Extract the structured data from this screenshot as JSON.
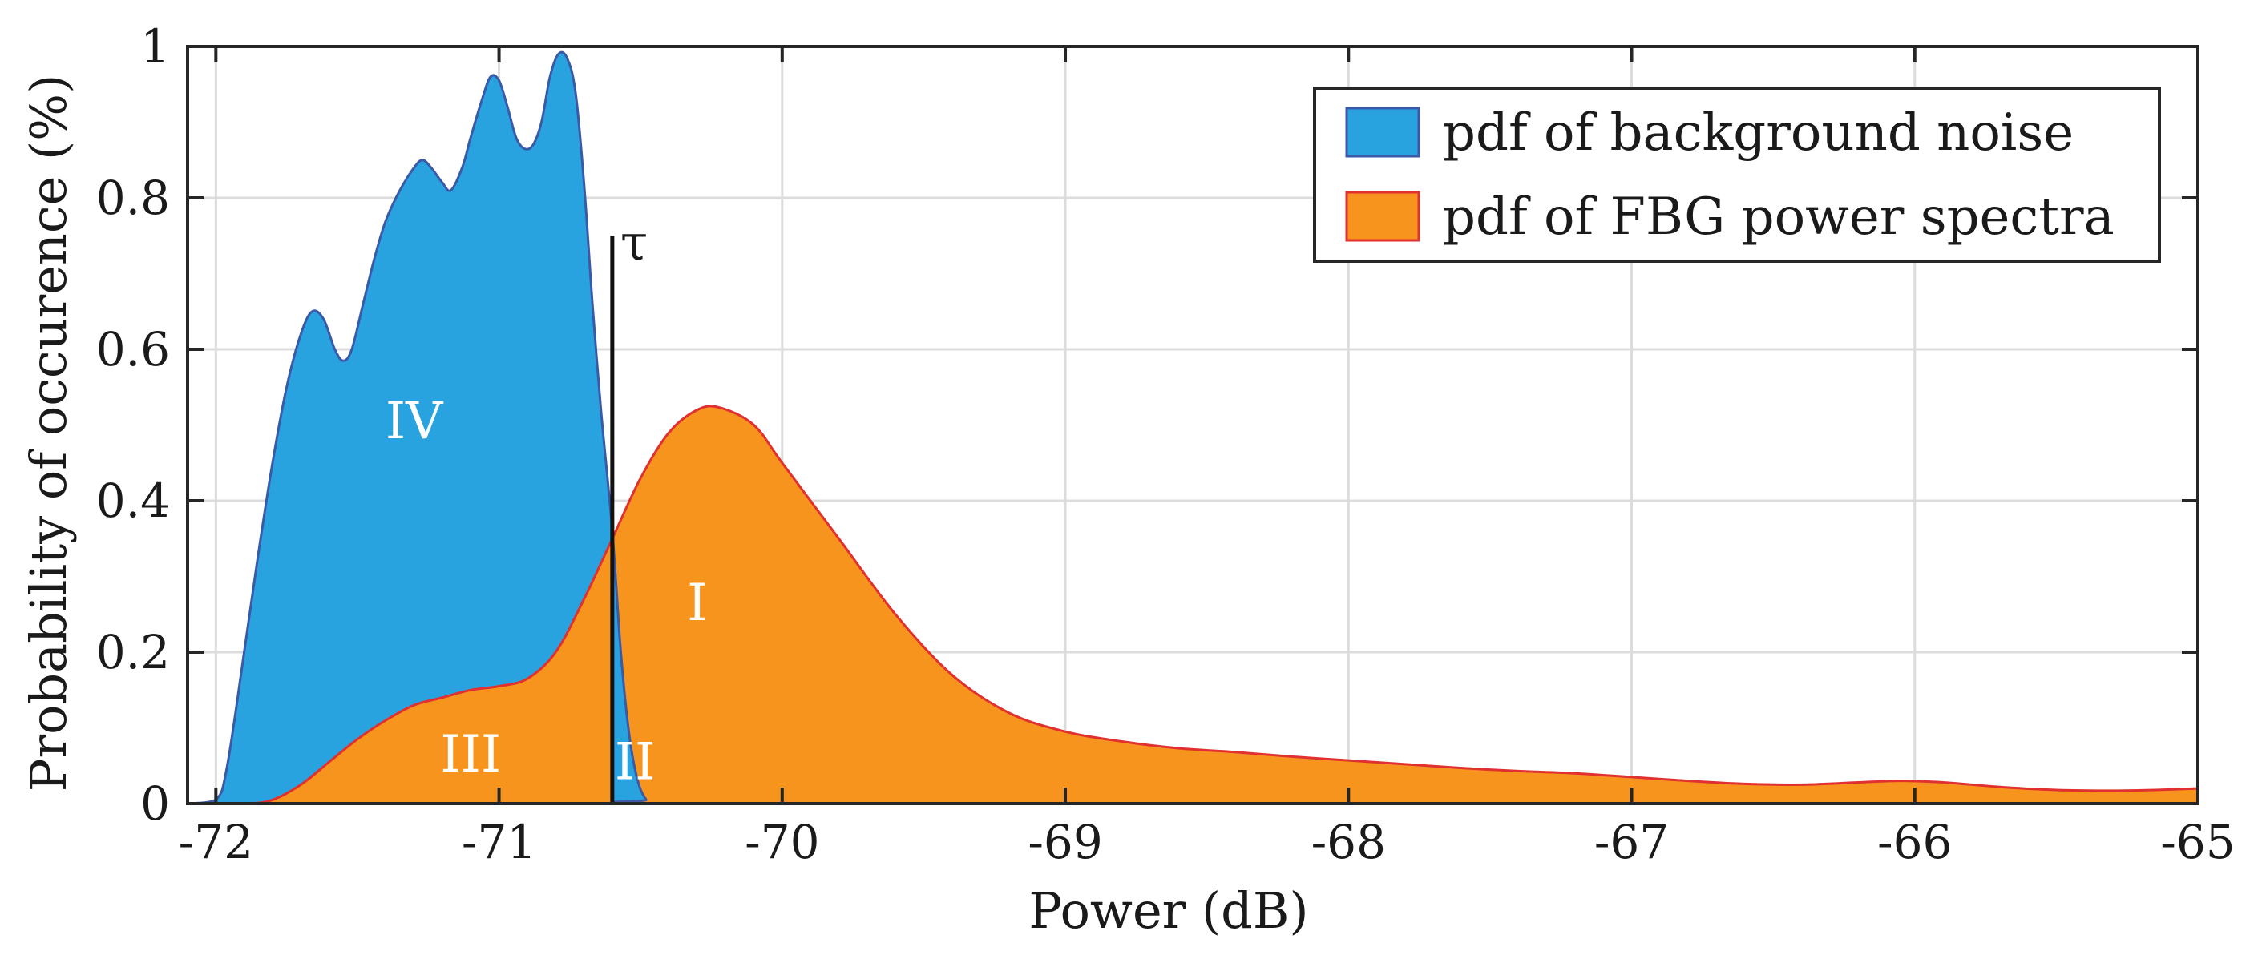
{
  "chart_data": {
    "type": "area",
    "title": "",
    "xlabel": "Power (dB)",
    "ylabel": "Probability of occurence (%)",
    "xlim": [
      -72.1,
      -65
    ],
    "ylim": [
      0,
      1
    ],
    "x_ticks": [
      -72,
      -71,
      -70,
      -69,
      -68,
      -67,
      -66,
      -65
    ],
    "y_ticks": [
      0,
      0.2,
      0.4,
      0.6,
      0.8,
      1
    ],
    "y_tick_labels": [
      "0",
      "0.2",
      "0.4",
      "0.6",
      "0.8",
      "1"
    ],
    "grid": true,
    "legend_position": "top-right",
    "series": [
      {
        "name": "pdf of background noise",
        "color": "#29a3df",
        "edge_color": "#3a5aa8",
        "points": [
          [
            -72.1,
            0
          ],
          [
            -72.0,
            0.005
          ],
          [
            -71.96,
            0.05
          ],
          [
            -71.9,
            0.2
          ],
          [
            -71.85,
            0.33
          ],
          [
            -71.8,
            0.45
          ],
          [
            -71.75,
            0.55
          ],
          [
            -71.7,
            0.62
          ],
          [
            -71.66,
            0.65
          ],
          [
            -71.62,
            0.64
          ],
          [
            -71.58,
            0.6
          ],
          [
            -71.55,
            0.585
          ],
          [
            -71.52,
            0.6
          ],
          [
            -71.48,
            0.66
          ],
          [
            -71.44,
            0.72
          ],
          [
            -71.4,
            0.77
          ],
          [
            -71.35,
            0.81
          ],
          [
            -71.3,
            0.84
          ],
          [
            -71.27,
            0.85
          ],
          [
            -71.24,
            0.84
          ],
          [
            -71.2,
            0.82
          ],
          [
            -71.17,
            0.81
          ],
          [
            -71.13,
            0.84
          ],
          [
            -71.1,
            0.88
          ],
          [
            -71.06,
            0.93
          ],
          [
            -71.03,
            0.96
          ],
          [
            -71.0,
            0.955
          ],
          [
            -70.97,
            0.92
          ],
          [
            -70.94,
            0.88
          ],
          [
            -70.91,
            0.865
          ],
          [
            -70.88,
            0.87
          ],
          [
            -70.85,
            0.9
          ],
          [
            -70.82,
            0.96
          ],
          [
            -70.79,
            0.99
          ],
          [
            -70.76,
            0.985
          ],
          [
            -70.73,
            0.94
          ],
          [
            -70.7,
            0.82
          ],
          [
            -70.67,
            0.66
          ],
          [
            -70.64,
            0.52
          ],
          [
            -70.6,
            0.36
          ],
          [
            -70.57,
            0.2
          ],
          [
            -70.54,
            0.09
          ],
          [
            -70.51,
            0.03
          ],
          [
            -70.48,
            0.005
          ],
          [
            -70.45,
            0
          ],
          [
            -65,
            0
          ]
        ]
      },
      {
        "name": "pdf of FBG power spectra",
        "color": "#f7941d",
        "edge_color": "#e03030",
        "points": [
          [
            -72.1,
            0
          ],
          [
            -71.9,
            0
          ],
          [
            -71.8,
            0.005
          ],
          [
            -71.7,
            0.025
          ],
          [
            -71.6,
            0.055
          ],
          [
            -71.5,
            0.085
          ],
          [
            -71.4,
            0.11
          ],
          [
            -71.3,
            0.13
          ],
          [
            -71.2,
            0.14
          ],
          [
            -71.1,
            0.15
          ],
          [
            -71.0,
            0.155
          ],
          [
            -70.9,
            0.165
          ],
          [
            -70.8,
            0.2
          ],
          [
            -70.7,
            0.27
          ],
          [
            -70.6,
            0.35
          ],
          [
            -70.5,
            0.43
          ],
          [
            -70.4,
            0.49
          ],
          [
            -70.3,
            0.52
          ],
          [
            -70.22,
            0.523
          ],
          [
            -70.1,
            0.5
          ],
          [
            -70.0,
            0.45
          ],
          [
            -69.8,
            0.35
          ],
          [
            -69.6,
            0.25
          ],
          [
            -69.4,
            0.17
          ],
          [
            -69.2,
            0.12
          ],
          [
            -69.0,
            0.095
          ],
          [
            -68.8,
            0.082
          ],
          [
            -68.6,
            0.073
          ],
          [
            -68.4,
            0.068
          ],
          [
            -68.2,
            0.062
          ],
          [
            -68.0,
            0.057
          ],
          [
            -67.8,
            0.052
          ],
          [
            -67.6,
            0.047
          ],
          [
            -67.4,
            0.043
          ],
          [
            -67.2,
            0.04
          ],
          [
            -67.0,
            0.035
          ],
          [
            -66.8,
            0.03
          ],
          [
            -66.6,
            0.026
          ],
          [
            -66.4,
            0.025
          ],
          [
            -66.2,
            0.028
          ],
          [
            -66.05,
            0.03
          ],
          [
            -65.9,
            0.028
          ],
          [
            -65.7,
            0.022
          ],
          [
            -65.5,
            0.018
          ],
          [
            -65.3,
            0.017
          ],
          [
            -65.15,
            0.018
          ],
          [
            -65.0,
            0.02
          ]
        ]
      }
    ],
    "threshold": {
      "label": "τ",
      "x": -70.6,
      "y_top": 0.75
    },
    "regions": [
      {
        "label": "IV",
        "x": -71.3,
        "y": 0.5
      },
      {
        "label": "I",
        "x": -70.3,
        "y": 0.26
      },
      {
        "label": "III",
        "x": -71.1,
        "y": 0.06
      },
      {
        "label": "II",
        "x": -70.52,
        "y": 0.05
      }
    ]
  }
}
